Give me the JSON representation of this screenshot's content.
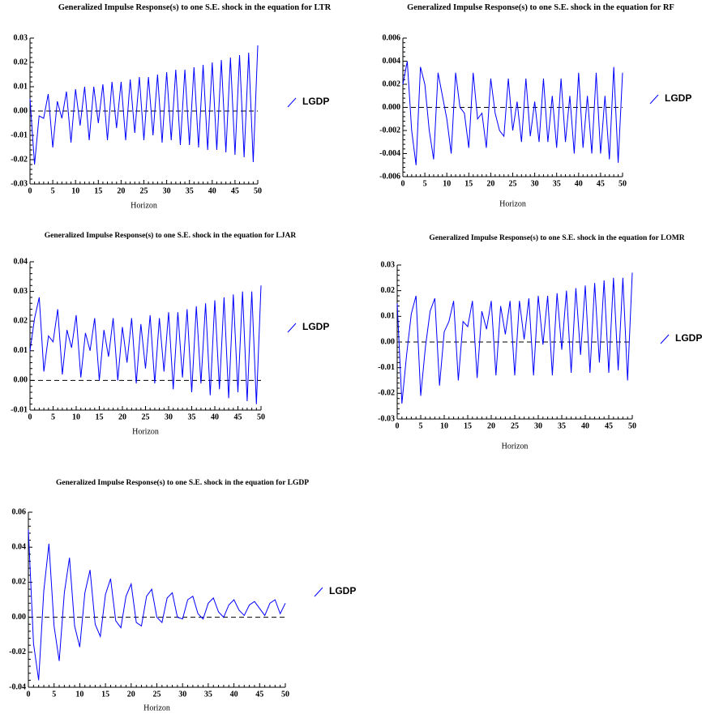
{
  "chart_data": [
    {
      "type": "line",
      "title": "Generalized Impulse Response(s) to one S.E. shock in the equation for LTR",
      "x_label": "Horizon",
      "x": [
        0,
        1,
        2,
        3,
        4,
        5,
        6,
        7,
        8,
        9,
        10,
        11,
        12,
        13,
        14,
        15,
        16,
        17,
        18,
        19,
        20,
        21,
        22,
        23,
        24,
        25,
        26,
        27,
        28,
        29,
        30,
        31,
        32,
        33,
        34,
        35,
        36,
        37,
        38,
        39,
        40,
        41,
        42,
        43,
        44,
        45,
        46,
        47,
        48,
        49,
        50
      ],
      "xlim": [
        0,
        50
      ],
      "xticks": [
        0,
        5,
        10,
        15,
        20,
        25,
        30,
        35,
        40,
        45,
        50
      ],
      "ylim": [
        -0.03,
        0.03
      ],
      "yticks": [
        -0.03,
        -0.02,
        -0.01,
        {
          "value": 0,
          "label": "0.00"
        },
        0.01,
        0.02,
        0.03
      ],
      "zero_line": 0,
      "series": [
        {
          "name": "LGDP",
          "color": "#0000ff",
          "values": [
            0.005,
            -0.022,
            -0.002,
            -0.003,
            0.007,
            -0.015,
            0.004,
            -0.003,
            0.008,
            -0.013,
            0.009,
            -0.006,
            0.01,
            -0.012,
            0.01,
            -0.005,
            0.011,
            -0.012,
            0.012,
            -0.007,
            0.012,
            -0.012,
            0.013,
            -0.009,
            0.014,
            -0.012,
            0.014,
            -0.01,
            0.015,
            -0.013,
            0.016,
            -0.012,
            0.017,
            -0.014,
            0.017,
            -0.014,
            0.018,
            -0.015,
            0.019,
            -0.016,
            0.02,
            -0.016,
            0.021,
            -0.017,
            0.022,
            -0.018,
            0.023,
            -0.019,
            0.024,
            -0.021,
            0.027
          ]
        }
      ]
    },
    {
      "type": "line",
      "title": "Generalized Impulse Response(s) to one S.E. shock in the equation for RF",
      "x_label": "Horizon",
      "x": [
        0,
        1,
        2,
        3,
        4,
        5,
        6,
        7,
        8,
        9,
        10,
        11,
        12,
        13,
        14,
        15,
        16,
        17,
        18,
        19,
        20,
        21,
        22,
        23,
        24,
        25,
        26,
        27,
        28,
        29,
        30,
        31,
        32,
        33,
        34,
        35,
        36,
        37,
        38,
        39,
        40,
        41,
        42,
        43,
        44,
        45,
        46,
        47,
        48,
        49,
        50
      ],
      "xlim": [
        0,
        50
      ],
      "xticks": [
        0,
        5,
        10,
        15,
        20,
        25,
        30,
        35,
        40,
        45,
        50
      ],
      "ylim": [
        -0.006,
        0.006
      ],
      "yticks": [
        -0.006,
        -0.004,
        -0.002,
        {
          "value": 0,
          "label": "0.000"
        },
        0.002,
        0.004,
        0.006
      ],
      "zero_line": 0,
      "series": [
        {
          "name": "LGDP",
          "color": "#0000ff",
          "values": [
            0.002,
            0.004,
            -0.002,
            -0.005,
            0.0035,
            0.002,
            -0.002,
            -0.0045,
            0.003,
            0.001,
            -0.001,
            -0.004,
            0.003,
            0,
            -0.0005,
            -0.0035,
            0.003,
            -0.001,
            -0.0005,
            -0.0035,
            0.0025,
            -0.0005,
            -0.002,
            -0.0025,
            0.0025,
            -0.002,
            0.0005,
            -0.003,
            0.0025,
            -0.0025,
            0.0005,
            -0.003,
            0.0025,
            -0.003,
            0.001,
            -0.0035,
            0.0025,
            -0.003,
            0.001,
            -0.004,
            0.003,
            -0.0035,
            0.001,
            -0.004,
            0.003,
            -0.004,
            0.001,
            -0.0045,
            0.0035,
            -0.0048,
            0.003
          ]
        }
      ]
    },
    {
      "type": "line",
      "title": "Generalized Impulse Response(s) to one S.E. shock in the equation for LJAR",
      "x_label": "Horizon",
      "x": [
        0,
        1,
        2,
        3,
        4,
        5,
        6,
        7,
        8,
        9,
        10,
        11,
        12,
        13,
        14,
        15,
        16,
        17,
        18,
        19,
        20,
        21,
        22,
        23,
        24,
        25,
        26,
        27,
        28,
        29,
        30,
        31,
        32,
        33,
        34,
        35,
        36,
        37,
        38,
        39,
        40,
        41,
        42,
        43,
        44,
        45,
        46,
        47,
        48,
        49,
        50
      ],
      "xlim": [
        0,
        50
      ],
      "xticks": [
        0,
        5,
        10,
        15,
        20,
        25,
        30,
        35,
        40,
        45,
        50
      ],
      "ylim": [
        -0.01,
        0.04
      ],
      "yticks": [
        -0.01,
        {
          "value": 0,
          "label": "0.00"
        },
        0.01,
        0.02,
        0.03,
        0.04
      ],
      "zero_line": 0,
      "series": [
        {
          "name": "LGDP",
          "color": "#0000ff",
          "values": [
            0.01,
            0.021,
            0.028,
            0.003,
            0.015,
            0.013,
            0.024,
            0.002,
            0.017,
            0.011,
            0.022,
            0.001,
            0.016,
            0.01,
            0.021,
            0.0,
            0.017,
            0.008,
            0.021,
            0.0,
            0.018,
            0.006,
            0.021,
            -0.001,
            0.019,
            0.004,
            0.022,
            -0.001,
            0.021,
            0.003,
            0.023,
            -0.003,
            0.023,
            0.001,
            0.024,
            -0.004,
            0.025,
            -0.001,
            0.026,
            -0.005,
            0.027,
            -0.003,
            0.028,
            -0.006,
            0.029,
            -0.004,
            0.03,
            -0.007,
            0.03,
            -0.008,
            0.032
          ]
        }
      ]
    },
    {
      "type": "line",
      "title": "Generalized Impulse Response(s) to one S.E. shock in the equation for LOMR",
      "x_label": "Horizon",
      "x": [
        0,
        1,
        2,
        3,
        4,
        5,
        6,
        7,
        8,
        9,
        10,
        11,
        12,
        13,
        14,
        15,
        16,
        17,
        18,
        19,
        20,
        21,
        22,
        23,
        24,
        25,
        26,
        27,
        28,
        29,
        30,
        31,
        32,
        33,
        34,
        35,
        36,
        37,
        38,
        39,
        40,
        41,
        42,
        43,
        44,
        45,
        46,
        47,
        48,
        49,
        50
      ],
      "xlim": [
        0,
        50
      ],
      "xticks": [
        0,
        5,
        10,
        15,
        20,
        25,
        30,
        35,
        40,
        45,
        50
      ],
      "ylim": [
        -0.03,
        0.03
      ],
      "yticks": [
        -0.03,
        -0.02,
        -0.01,
        {
          "value": 0,
          "label": "0.00"
        },
        0.01,
        0.02,
        0.03
      ],
      "zero_line": 0,
      "series": [
        {
          "name": "LGDP",
          "color": "#0000ff",
          "values": [
            0.015,
            -0.024,
            -0.005,
            0.011,
            0.018,
            -0.021,
            -0.002,
            0.012,
            0.017,
            -0.017,
            0.004,
            0.008,
            0.016,
            -0.015,
            0.008,
            0.006,
            0.016,
            -0.014,
            0.012,
            0.005,
            0.016,
            -0.013,
            0.014,
            0.003,
            0.016,
            -0.013,
            0.016,
            0.001,
            0.017,
            -0.013,
            0.018,
            -0.001,
            0.018,
            -0.013,
            0.019,
            -0.003,
            0.02,
            -0.012,
            0.021,
            -0.005,
            0.022,
            -0.012,
            0.023,
            -0.008,
            0.024,
            -0.012,
            0.025,
            -0.011,
            0.025,
            -0.015,
            0.027
          ]
        }
      ]
    },
    {
      "type": "line",
      "title": "Generalized Impulse Response(s) to one S.E. shock in the equation for LGDP",
      "x_label": "Horizon",
      "x": [
        0,
        1,
        2,
        3,
        4,
        5,
        6,
        7,
        8,
        9,
        10,
        11,
        12,
        13,
        14,
        15,
        16,
        17,
        18,
        19,
        20,
        21,
        22,
        23,
        24,
        25,
        26,
        27,
        28,
        29,
        30,
        31,
        32,
        33,
        34,
        35,
        36,
        37,
        38,
        39,
        40,
        41,
        42,
        43,
        44,
        45,
        46,
        47,
        48,
        49,
        50
      ],
      "xlim": [
        0,
        50
      ],
      "xticks": [
        0,
        5,
        10,
        15,
        20,
        25,
        30,
        35,
        40,
        45,
        50
      ],
      "ylim": [
        -0.04,
        0.06
      ],
      "yticks": [
        -0.04,
        -0.02,
        {
          "value": 0,
          "label": "0.00"
        },
        0.02,
        0.04,
        0.06
      ],
      "zero_line": 0,
      "series": [
        {
          "name": "LGDP",
          "color": "#0000ff",
          "values": [
            0.05,
            -0.015,
            -0.036,
            0.015,
            0.042,
            -0.005,
            -0.025,
            0.014,
            0.034,
            -0.005,
            -0.017,
            0.014,
            0.027,
            -0.004,
            -0.011,
            0.013,
            0.022,
            -0.002,
            -0.006,
            0.012,
            0.019,
            -0.003,
            -0.005,
            0.012,
            0.016,
            0.0,
            -0.003,
            0.011,
            0.014,
            0.0,
            -0.001,
            0.01,
            0.012,
            0.002,
            -0.001,
            0.008,
            0.011,
            0.003,
            0.0,
            0.007,
            0.01,
            0.004,
            0.001,
            0.007,
            0.009,
            0.005,
            0.001,
            0.008,
            0.01,
            0.002,
            0.008
          ]
        }
      ]
    }
  ]
}
